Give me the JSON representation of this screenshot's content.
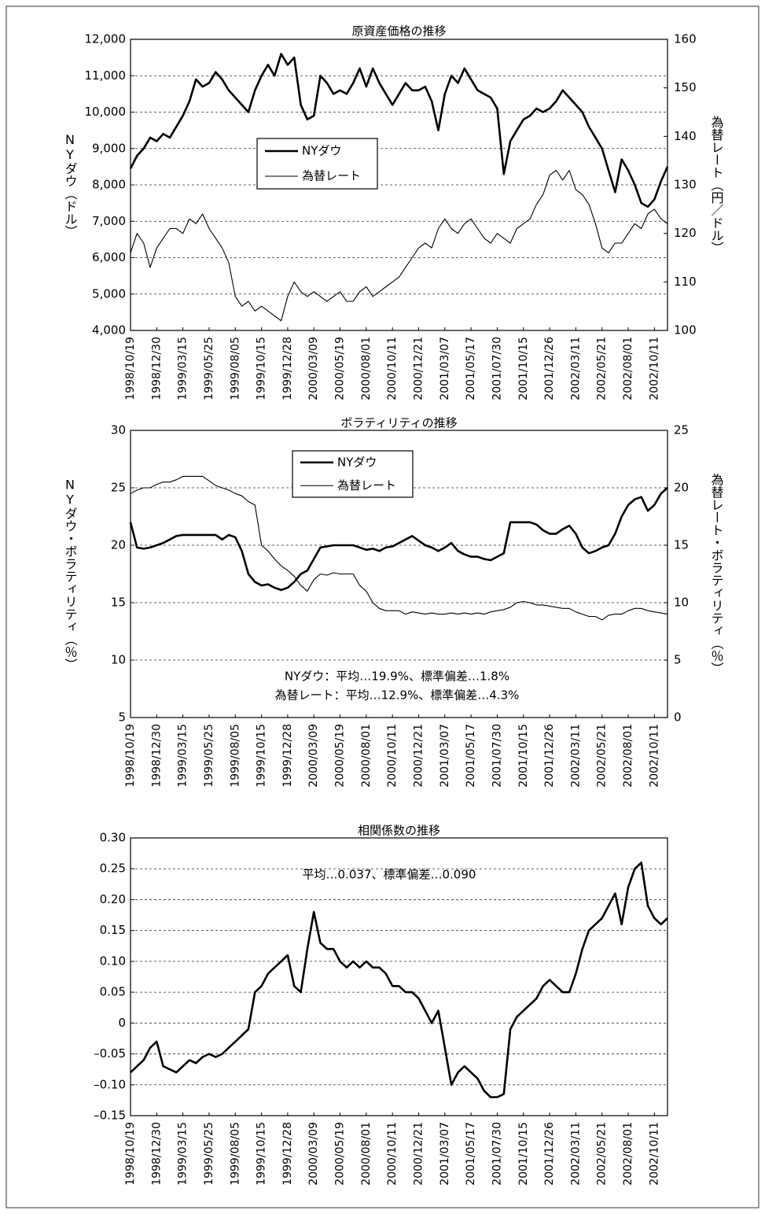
{
  "chart_data": [
    {
      "type": "line",
      "title": "原資産価格の推移",
      "ylabel": "NYダウ（ドル）",
      "y2label": "為替レート（円／ドル）",
      "categories": [
        "1998/10/19",
        null,
        null,
        null,
        "1998/12/30",
        null,
        null,
        null,
        "1999/03/15",
        null,
        null,
        null,
        "1999/05/25",
        null,
        null,
        null,
        "1999/08/05",
        null,
        null,
        null,
        "1999/10/15",
        null,
        null,
        null,
        "1999/12/28",
        null,
        null,
        null,
        "2000/03/09",
        null,
        null,
        null,
        "2000/05/19",
        null,
        null,
        null,
        "2000/08/01",
        null,
        null,
        null,
        "2000/10/11",
        null,
        null,
        null,
        "2000/12/21",
        null,
        null,
        null,
        "2001/03/07",
        null,
        null,
        null,
        "2001/05/17",
        null,
        null,
        null,
        "2001/07/30",
        null,
        null,
        null,
        "2001/10/15",
        null,
        null,
        null,
        "2001/12/26",
        null,
        null,
        null,
        "2002/03/11",
        null,
        null,
        null,
        "2002/05/21",
        null,
        null,
        null,
        "2002/08/01",
        null,
        null,
        null,
        "2002/10/11",
        null,
        null
      ],
      "series": [
        {
          "name": "NYダウ",
          "color": "#000000",
          "width": 2.6,
          "values": [
            8450,
            8800,
            9000,
            9300,
            9200,
            9400,
            9300,
            9600,
            9900,
            10300,
            10900,
            10700,
            10800,
            11100,
            10900,
            10600,
            10400,
            10200,
            10000,
            10600,
            11000,
            11300,
            11000,
            11600,
            11300,
            11500,
            10200,
            9800,
            9900,
            11000,
            10800,
            10500,
            10600,
            10500,
            10800,
            11200,
            10700,
            11200,
            10800,
            10500,
            10200,
            10500,
            10800,
            10600,
            10600,
            10700,
            10300,
            9500,
            10500,
            11000,
            10800,
            11200,
            10900,
            10600,
            10500,
            10400,
            10100,
            8300,
            9200,
            9500,
            9800,
            9900,
            10100,
            10000,
            10100,
            10300,
            10600,
            10400,
            10200,
            10000,
            9600,
            9300,
            9000,
            8400,
            7800,
            8700,
            8400,
            8000,
            7500,
            7400,
            7600,
            8100,
            8500
          ]
        },
        {
          "name": "為替レート",
          "color": "#000000",
          "width": 1.1,
          "axis": "y2",
          "values": [
            116,
            120,
            118,
            113,
            117,
            119,
            121,
            121,
            120,
            123,
            122,
            124,
            121,
            119,
            117,
            114,
            107,
            105,
            106,
            104,
            105,
            104,
            103,
            102,
            107,
            110,
            108,
            107,
            108,
            107,
            106,
            107,
            108,
            106,
            106,
            108,
            109,
            107,
            108,
            109,
            110,
            111,
            113,
            115,
            117,
            118,
            117,
            121,
            123,
            121,
            120,
            122,
            123,
            121,
            119,
            118,
            120,
            119,
            118,
            121,
            122,
            123,
            126,
            128,
            132,
            133,
            131,
            133,
            129,
            128,
            126,
            122,
            117,
            116,
            118,
            118,
            120,
            122,
            121,
            124,
            125,
            123,
            122
          ]
        }
      ],
      "ylim": [
        4000,
        12000
      ],
      "yticks": [
        {
          "value": 4000,
          "label": "4,000"
        },
        {
          "value": 5000,
          "label": "5,000"
        },
        {
          "value": 6000,
          "label": "6,000"
        },
        {
          "value": 7000,
          "label": "7,000"
        },
        {
          "value": 8000,
          "label": "8,000"
        },
        {
          "value": 9000,
          "label": "9,000"
        },
        {
          "value": 10000,
          "label": "10,000"
        },
        {
          "value": 11000,
          "label": "11,000"
        },
        {
          "value": 12000,
          "label": "12,000"
        }
      ],
      "y2lim": [
        100,
        160
      ],
      "y2ticks": [
        100,
        110,
        120,
        130,
        140,
        150,
        160
      ],
      "grid": true,
      "legend": true
    },
    {
      "type": "line",
      "title": "ボラティリティの推移",
      "ylabel": "NYダウ・ボラティリティ（％）",
      "y2label": "為替レート・ボラティリティ（％）",
      "categories": [
        "1998/10/19",
        null,
        null,
        null,
        "1998/12/30",
        null,
        null,
        null,
        "1999/03/15",
        null,
        null,
        null,
        "1999/05/25",
        null,
        null,
        null,
        "1999/08/05",
        null,
        null,
        null,
        "1999/10/15",
        null,
        null,
        null,
        "1999/12/28",
        null,
        null,
        null,
        "2000/03/09",
        null,
        null,
        null,
        "2000/05/19",
        null,
        null,
        null,
        "2000/08/01",
        null,
        null,
        null,
        "2000/10/11",
        null,
        null,
        null,
        "2000/12/21",
        null,
        null,
        null,
        "2001/03/07",
        null,
        null,
        null,
        "2001/05/17",
        null,
        null,
        null,
        "2001/07/30",
        null,
        null,
        null,
        "2001/10/15",
        null,
        null,
        null,
        "2001/12/26",
        null,
        null,
        null,
        "2002/03/11",
        null,
        null,
        null,
        "2002/05/21",
        null,
        null,
        null,
        "2002/08/01",
        null,
        null,
        null,
        "2002/10/11",
        null,
        null
      ],
      "series": [
        {
          "name": "NYダウ",
          "color": "#000000",
          "width": 2.6,
          "values": [
            22,
            19.8,
            19.7,
            19.8,
            20.0,
            20.2,
            20.5,
            20.8,
            20.9,
            20.9,
            20.9,
            20.9,
            20.9,
            20.9,
            20.5,
            20.9,
            20.7,
            19.5,
            17.5,
            16.8,
            16.5,
            16.6,
            16.3,
            16.1,
            16.3,
            16.8,
            17.5,
            17.8,
            18.8,
            19.8,
            19.9,
            20.0,
            20.0,
            20.0,
            20.0,
            19.8,
            19.6,
            19.7,
            19.5,
            19.8,
            19.9,
            20.2,
            20.5,
            20.8,
            20.4,
            20.0,
            19.8,
            19.5,
            19.8,
            20.2,
            19.5,
            19.2,
            19.0,
            19.0,
            18.8,
            18.7,
            19.0,
            19.3,
            22.0,
            22.0,
            22.0,
            22.0,
            21.8,
            21.3,
            21.0,
            21.0,
            21.4,
            21.7,
            21.0,
            19.8,
            19.3,
            19.5,
            19.8,
            20.0,
            21.0,
            22.5,
            23.5,
            24.0,
            24.2,
            23.0,
            23.5,
            24.5,
            25.0
          ]
        },
        {
          "name": "為替レート",
          "color": "#000000",
          "width": 1.1,
          "axis": "y2",
          "values": [
            19.5,
            19.8,
            20.0,
            20.0,
            20.3,
            20.5,
            20.5,
            20.7,
            21.0,
            21.0,
            21.0,
            21.0,
            20.6,
            20.2,
            20.0,
            19.8,
            19.5,
            19.3,
            18.8,
            18.5,
            15.0,
            14.5,
            13.8,
            13.2,
            12.8,
            12.3,
            11.5,
            11.0,
            12.0,
            12.5,
            12.4,
            12.6,
            12.5,
            12.5,
            12.5,
            11.5,
            11.0,
            10.0,
            9.5,
            9.3,
            9.3,
            9.3,
            9.0,
            9.2,
            9.1,
            9.0,
            9.1,
            9.0,
            9.0,
            9.1,
            9.0,
            9.1,
            9.0,
            9.1,
            9.0,
            9.2,
            9.3,
            9.4,
            9.6,
            10.0,
            10.1,
            10.0,
            9.8,
            9.8,
            9.7,
            9.6,
            9.5,
            9.5,
            9.2,
            9.0,
            8.8,
            8.8,
            8.5,
            8.9,
            9.0,
            9.0,
            9.3,
            9.5,
            9.5,
            9.3,
            9.2,
            9.1,
            9.0
          ]
        }
      ],
      "ylim": [
        5,
        30
      ],
      "yticks": [
        5,
        10,
        15,
        20,
        25,
        30
      ],
      "y2lim": [
        0,
        25
      ],
      "y2ticks": [
        0,
        5,
        10,
        15,
        20,
        25
      ],
      "grid": true,
      "legend": true,
      "annotations": [
        "NYダウ：平均…19.9%、標準偏差…1.8%",
        "為替レート：平均…12.9%、標準偏差…4.3%"
      ]
    },
    {
      "type": "line",
      "title": "相関係数の推移",
      "categories": [
        "1998/10/19",
        null,
        null,
        null,
        "1998/12/30",
        null,
        null,
        null,
        "1999/03/15",
        null,
        null,
        null,
        "1999/05/25",
        null,
        null,
        null,
        "1999/08/05",
        null,
        null,
        null,
        "1999/10/15",
        null,
        null,
        null,
        "1999/12/28",
        null,
        null,
        null,
        "2000/03/09",
        null,
        null,
        null,
        "2000/05/19",
        null,
        null,
        null,
        "2000/08/01",
        null,
        null,
        null,
        "2000/10/11",
        null,
        null,
        null,
        "2000/12/21",
        null,
        null,
        null,
        "2001/03/07",
        null,
        null,
        null,
        "2001/05/17",
        null,
        null,
        null,
        "2001/07/30",
        null,
        null,
        null,
        "2001/10/15",
        null,
        null,
        null,
        "2001/12/26",
        null,
        null,
        null,
        "2002/03/11",
        null,
        null,
        null,
        "2002/05/21",
        null,
        null,
        null,
        "2002/08/01",
        null,
        null,
        null,
        "2002/10/11",
        null,
        null
      ],
      "series": [
        {
          "color": "#000000",
          "width": 2.6,
          "values": [
            -0.08,
            -0.07,
            -0.06,
            -0.04,
            -0.03,
            -0.07,
            -0.075,
            -0.08,
            -0.07,
            -0.06,
            -0.065,
            -0.055,
            -0.05,
            -0.055,
            -0.05,
            -0.04,
            -0.03,
            -0.02,
            -0.01,
            0.05,
            0.06,
            0.08,
            0.09,
            0.1,
            0.11,
            0.06,
            0.05,
            0.12,
            0.18,
            0.13,
            0.12,
            0.12,
            0.1,
            0.09,
            0.1,
            0.09,
            0.1,
            0.09,
            0.09,
            0.08,
            0.06,
            0.06,
            0.05,
            0.05,
            0.04,
            0.02,
            0.0,
            0.02,
            -0.04,
            -0.1,
            -0.08,
            -0.07,
            -0.08,
            -0.09,
            -0.11,
            -0.12,
            -0.12,
            -0.115,
            -0.01,
            0.01,
            0.02,
            0.03,
            0.04,
            0.06,
            0.07,
            0.06,
            0.05,
            0.05,
            0.08,
            0.12,
            0.15,
            0.16,
            0.17,
            0.19,
            0.21,
            0.16,
            0.22,
            0.25,
            0.26,
            0.19,
            0.17,
            0.16,
            0.17
          ]
        }
      ],
      "ylim": [
        -0.15,
        0.3
      ],
      "yticks": [
        {
          "value": -0.15,
          "label": "–0.15"
        },
        {
          "value": -0.1,
          "label": "–0.10"
        },
        {
          "value": -0.05,
          "label": "–0.05"
        },
        0,
        0.05,
        {
          "value": 0.1,
          "label": "0.10"
        },
        0.15,
        {
          "value": 0.2,
          "label": "0.20"
        },
        0.25,
        {
          "value": 0.3,
          "label": "0.30"
        }
      ],
      "grid": true,
      "annotations": [
        "平均…0.037、標準偏差…0.090"
      ]
    }
  ]
}
